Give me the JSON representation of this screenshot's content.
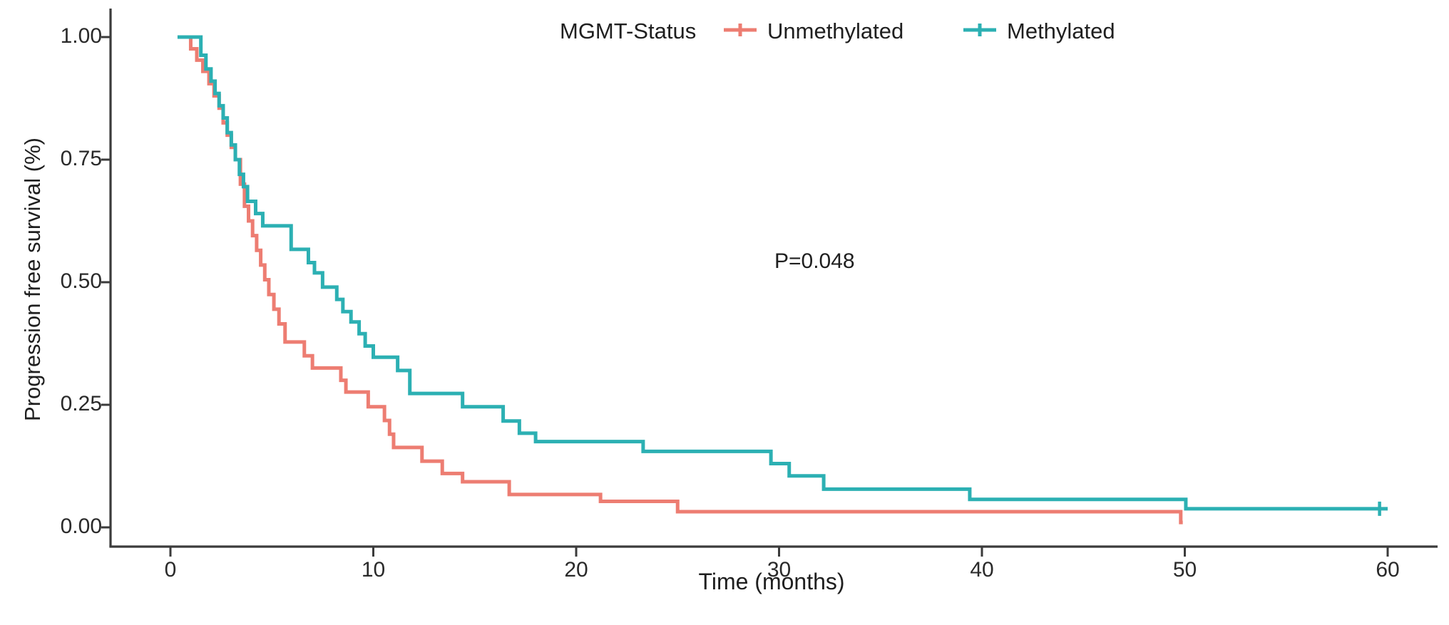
{
  "legend": {
    "title": "MGMT-Status",
    "items": [
      {
        "label": "Unmethylated",
        "color": "#ED7D72"
      },
      {
        "label": "Methylated",
        "color": "#2CB0B3"
      }
    ]
  },
  "annotations": {
    "p_value": "P=0.048"
  },
  "colors": {
    "axis": "#3b3b3b",
    "text": "#1f1f1f",
    "unmethylated": "#ED7D72",
    "methylated": "#2CB0B3"
  },
  "chart_data": {
    "type": "line",
    "subtype": "kaplan-meier-step",
    "title": "",
    "xlabel": "Time (months)",
    "ylabel": "Progression free survival (%)",
    "xlim": [
      0,
      60
    ],
    "ylim": [
      0,
      1
    ],
    "grid": "off",
    "legend_position": "top",
    "p_value": "P=0.048",
    "x_ticks": [
      0,
      10,
      20,
      30,
      40,
      50,
      60
    ],
    "y_ticks": [
      {
        "value": 1.0,
        "label": "1.00"
      },
      {
        "value": 0.75,
        "label": "0.75"
      },
      {
        "value": 0.5,
        "label": "0.50"
      },
      {
        "value": 0.25,
        "label": "0.25"
      },
      {
        "value": 0.0,
        "label": "0.00"
      }
    ],
    "series": [
      {
        "name": "Unmethylated",
        "color": "#ED7D72",
        "end_time": 49.9,
        "censor_times": [],
        "steps": [
          [
            0.35,
            1.0
          ],
          [
            1.0,
            0.976
          ],
          [
            1.3,
            0.953
          ],
          [
            1.6,
            0.93
          ],
          [
            1.9,
            0.905
          ],
          [
            2.15,
            0.88
          ],
          [
            2.4,
            0.855
          ],
          [
            2.6,
            0.825
          ],
          [
            2.8,
            0.8
          ],
          [
            3.0,
            0.775
          ],
          [
            3.2,
            0.75
          ],
          [
            3.45,
            0.7
          ],
          [
            3.65,
            0.655
          ],
          [
            3.85,
            0.625
          ],
          [
            4.05,
            0.595
          ],
          [
            4.25,
            0.565
          ],
          [
            4.45,
            0.535
          ],
          [
            4.65,
            0.505
          ],
          [
            4.85,
            0.475
          ],
          [
            5.1,
            0.445
          ],
          [
            5.35,
            0.415
          ],
          [
            5.65,
            0.378
          ],
          [
            6.6,
            0.35
          ],
          [
            7.0,
            0.325
          ],
          [
            8.4,
            0.3
          ],
          [
            8.65,
            0.276
          ],
          [
            9.75,
            0.246
          ],
          [
            10.55,
            0.218
          ],
          [
            10.8,
            0.19
          ],
          [
            11.0,
            0.163
          ],
          [
            12.4,
            0.135
          ],
          [
            13.4,
            0.11
          ],
          [
            14.4,
            0.093
          ],
          [
            16.7,
            0.067
          ],
          [
            21.2,
            0.053
          ],
          [
            25.0,
            0.032
          ],
          [
            49.8,
            0.01
          ]
        ]
      },
      {
        "name": "Methylated",
        "color": "#2CB0B3",
        "end_time": 60.0,
        "censor_times": [
          59.6
        ],
        "steps": [
          [
            0.35,
            1.0
          ],
          [
            1.5,
            0.963
          ],
          [
            1.75,
            0.935
          ],
          [
            2.0,
            0.91
          ],
          [
            2.2,
            0.885
          ],
          [
            2.4,
            0.86
          ],
          [
            2.6,
            0.835
          ],
          [
            2.8,
            0.805
          ],
          [
            3.0,
            0.78
          ],
          [
            3.2,
            0.75
          ],
          [
            3.4,
            0.72
          ],
          [
            3.6,
            0.695
          ],
          [
            3.8,
            0.665
          ],
          [
            4.2,
            0.64
          ],
          [
            4.55,
            0.615
          ],
          [
            5.95,
            0.567
          ],
          [
            6.8,
            0.54
          ],
          [
            7.1,
            0.519
          ],
          [
            7.5,
            0.49
          ],
          [
            8.2,
            0.465
          ],
          [
            8.5,
            0.44
          ],
          [
            8.9,
            0.419
          ],
          [
            9.3,
            0.395
          ],
          [
            9.6,
            0.37
          ],
          [
            10.0,
            0.347
          ],
          [
            11.2,
            0.32
          ],
          [
            11.8,
            0.273
          ],
          [
            14.4,
            0.246
          ],
          [
            16.4,
            0.217
          ],
          [
            17.2,
            0.192
          ],
          [
            18.0,
            0.175
          ],
          [
            23.3,
            0.155
          ],
          [
            29.6,
            0.13
          ],
          [
            30.5,
            0.105
          ],
          [
            32.2,
            0.078
          ],
          [
            39.4,
            0.057
          ],
          [
            50.05,
            0.038
          ]
        ]
      }
    ]
  }
}
